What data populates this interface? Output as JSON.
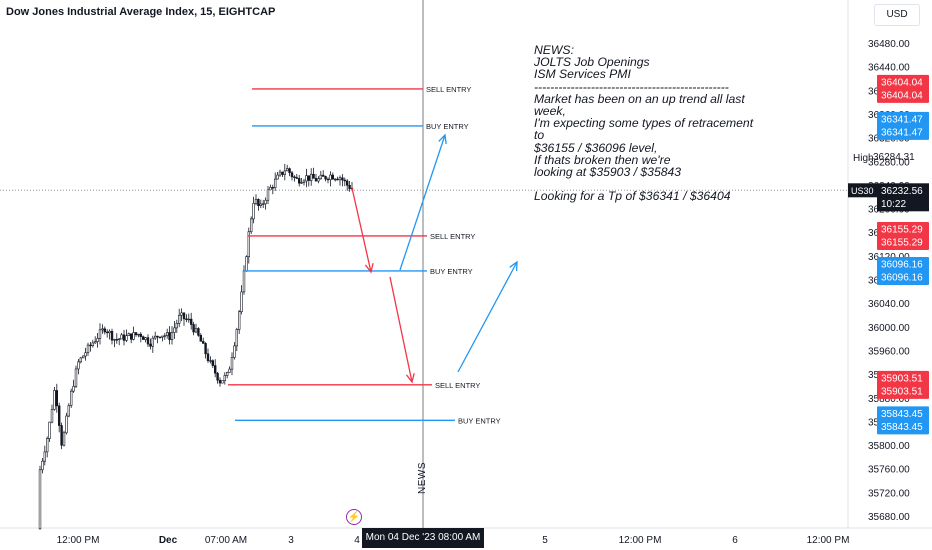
{
  "header": {
    "title": "Dow Jones Industrial Average Index, 15, EIGHTCAP",
    "currency": "USD"
  },
  "chart_data": {
    "type": "candlestick",
    "price_axis": {
      "ylim": [
        35650,
        36540
      ],
      "ticks": [
        36480,
        36440,
        36400,
        36360,
        36320,
        36280,
        36240,
        36200,
        36160,
        36120,
        36080,
        36040,
        36000,
        35960,
        35920,
        35880,
        35840,
        35800,
        35760,
        35720,
        35680
      ],
      "tick_labels": [
        "36480.00",
        "36440.00",
        "36400.00",
        "36360.00",
        "36320.00",
        "36280.00",
        "36240.00",
        "36200.00",
        "36160.00",
        "36120.00",
        "36080.00",
        "36040.00",
        "36000.00",
        "35960.00",
        "35920.00",
        "35880.00",
        "35840.00",
        "35800.00",
        "35760.00",
        "35720.00",
        "35680.00"
      ]
    },
    "time_axis": {
      "labels": [
        "12:00 PM",
        "Dec",
        "07:00 AM",
        "3",
        "4",
        "5",
        "12:00 PM",
        "6",
        "12:00 PM"
      ]
    },
    "series_path": [
      [
        0,
        35660
      ],
      [
        6,
        35700
      ],
      [
        10,
        35780
      ],
      [
        15,
        35700
      ],
      [
        20,
        35800
      ],
      [
        26,
        35740
      ],
      [
        32,
        35820
      ],
      [
        40,
        35760
      ],
      [
        48,
        35820
      ],
      [
        55,
        35900
      ],
      [
        62,
        35800
      ],
      [
        70,
        35880
      ],
      [
        78,
        35940
      ],
      [
        86,
        35960
      ],
      [
        95,
        35980
      ],
      [
        105,
        36000
      ],
      [
        115,
        35980
      ],
      [
        128,
        35985
      ],
      [
        140,
        35990
      ],
      [
        150,
        35975
      ],
      [
        160,
        35990
      ],
      [
        170,
        35985
      ],
      [
        180,
        36020
      ],
      [
        190,
        36010
      ],
      [
        200,
        35980
      ],
      [
        210,
        35940
      ],
      [
        220,
        35910
      ],
      [
        228,
        35920
      ],
      [
        236,
        35990
      ],
      [
        242,
        36060
      ],
      [
        248,
        36150
      ],
      [
        254,
        36220
      ],
      [
        260,
        36200
      ],
      [
        268,
        36230
      ],
      [
        276,
        36250
      ],
      [
        286,
        36270
      ],
      [
        296,
        36250
      ],
      [
        306,
        36255
      ],
      [
        318,
        36250
      ],
      [
        330,
        36258
      ],
      [
        340,
        36255
      ],
      [
        348,
        36240
      ],
      [
        354,
        36235
      ]
    ],
    "last_price": {
      "symbol": "US30",
      "price": "36232.56",
      "countdown": "10:22"
    },
    "high": {
      "label": "High",
      "price": "36284.31"
    },
    "levels": [
      {
        "name": "SELL ENTRY",
        "price": "36404.04",
        "color": "#f23645"
      },
      {
        "name": "BUY ENTRY",
        "price": "36341.47",
        "color": "#2196f3"
      },
      {
        "name": "SELL ENTRY",
        "price": "36155.29",
        "color": "#f23645"
      },
      {
        "name": "BUY ENTRY",
        "price": "36096.16",
        "color": "#2196f3"
      },
      {
        "name": "SELL ENTRY",
        "price": "35903.51",
        "color": "#f23645"
      },
      {
        "name": "BUY ENTRY",
        "price": "35843.45",
        "color": "#2196f3"
      }
    ],
    "crosshair_date": "Mon 04 Dec '23   08:00 AM",
    "news_marker": "NEWS"
  },
  "annotation": {
    "lines": [
      "NEWS:",
      "JOLTS Job Openings",
      "ISM Services PMI",
      "------------------------------------------------",
      "Market has been on an up trend all last",
      "week,",
      "I'm expecting some types of retracement",
      "to",
      "$36155 / $36096 level,",
      "If thats broken then we're",
      "looking at $35903 / $35843",
      "",
      "Looking for a Tp of $36341 / $36404"
    ]
  },
  "colors": {
    "red": "#f23645",
    "blue": "#2196f3",
    "candle": "#131722",
    "axis_text": "#131722"
  }
}
